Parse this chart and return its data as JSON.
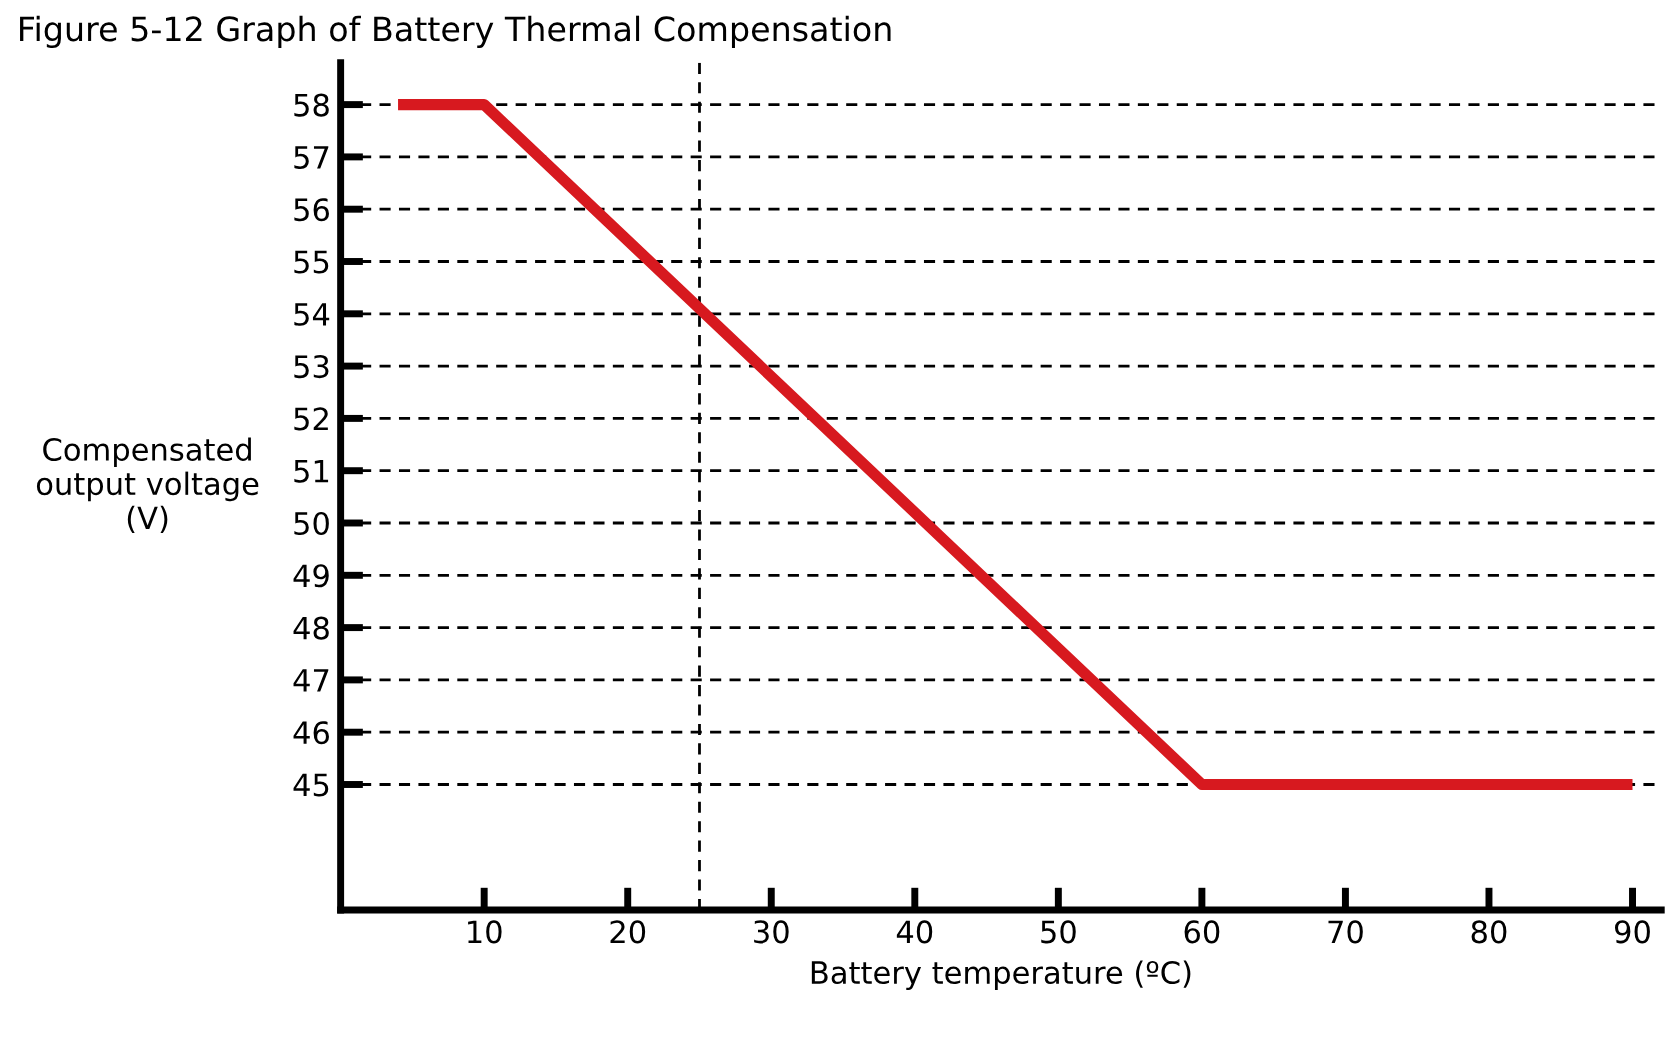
{
  "chart_data": {
    "type": "line",
    "title": "Figure 5-12 Graph of Battery Thermal Compensation",
    "xlabel": "Battery temperature (ºC)",
    "ylabel": "Compensated\noutput voltage\n(V)",
    "series": [
      {
        "x": [
          4,
          10,
          60,
          90
        ],
        "values": [
          58,
          58,
          45,
          45
        ],
        "color": "#d7191f"
      }
    ],
    "xlim": [
      0,
      92
    ],
    "xticks": [
      10,
      20,
      30,
      40,
      50,
      60,
      70,
      80,
      90
    ],
    "ylim": [
      42.6,
      58.8
    ],
    "yticks": [
      45,
      46,
      47,
      48,
      49,
      50,
      51,
      52,
      53,
      54,
      55,
      56,
      57,
      58
    ],
    "grid": "y",
    "marker": "none",
    "line_style": "solid",
    "ref_lines": [
      {
        "axis": "x",
        "value": 25,
        "label": null,
        "color": "#000000",
        "line_style": "dashed"
      }
    ]
  }
}
